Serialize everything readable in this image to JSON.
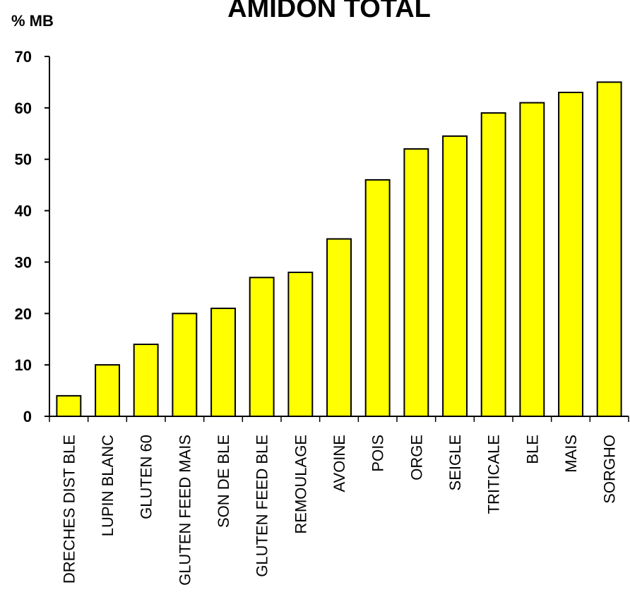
{
  "chart_data": {
    "type": "bar",
    "title": "AMIDON TOTAL",
    "ylabel": "% MB",
    "xlabel": "",
    "ylim": [
      0,
      70
    ],
    "yticks": [
      0,
      10,
      20,
      30,
      40,
      50,
      60,
      70
    ],
    "grid": false,
    "legend": "none",
    "bar_color": "#FFFF00",
    "bar_edge_color": "#000000",
    "categories": [
      "DRECHES DIST BLE",
      "LUPIN BLANC",
      "GLUTEN 60",
      "GLUTEN FEED MAIS",
      "SON DE BLE",
      "GLUTEN FEED BLE",
      "REMOULAGE",
      "AVOINE",
      "POIS",
      "ORGE",
      "SEIGLE",
      "TRITICALE",
      "BLE",
      "MAIS",
      "SORGHO"
    ],
    "values": [
      4,
      10,
      14,
      20,
      21,
      27,
      28,
      34.5,
      46,
      52,
      54.5,
      59,
      61,
      63,
      65
    ]
  }
}
